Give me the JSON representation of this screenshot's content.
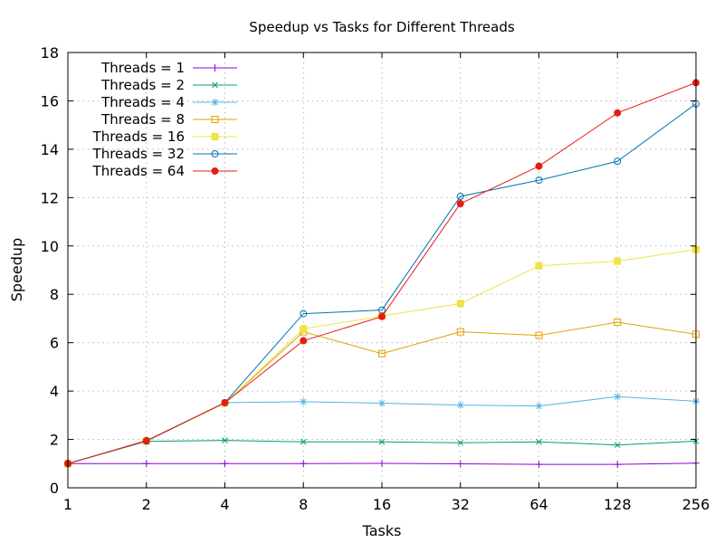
{
  "chart_data": {
    "type": "line",
    "title": "Speedup vs Tasks for Different Threads",
    "xlabel": "Tasks",
    "ylabel": "Speedup",
    "x_scale": "log2",
    "x": [
      1,
      2,
      4,
      8,
      16,
      32,
      64,
      128,
      256
    ],
    "x_tick_labels": [
      "1",
      "2",
      "4",
      "8",
      "16",
      "32",
      "64",
      "128",
      "256"
    ],
    "ylim": [
      0,
      18
    ],
    "y_ticks": [
      0,
      2,
      4,
      6,
      8,
      10,
      12,
      14,
      16,
      18
    ],
    "grid": true,
    "legend_position": "top-left",
    "series": [
      {
        "name": "Threads = 1",
        "color": "#9400d3",
        "marker": "plus",
        "values": [
          1.0,
          1.0,
          1.0,
          1.0,
          1.01,
          0.99,
          0.97,
          0.97,
          1.02
        ]
      },
      {
        "name": "Threads = 2",
        "color": "#009e73",
        "marker": "cross",
        "values": [
          1.0,
          1.92,
          1.96,
          1.9,
          1.9,
          1.86,
          1.9,
          1.77,
          1.93
        ]
      },
      {
        "name": "Threads = 4",
        "color": "#56b4e9",
        "marker": "star",
        "values": [
          1.0,
          1.93,
          3.52,
          3.56,
          3.5,
          3.42,
          3.38,
          3.77,
          3.58
        ]
      },
      {
        "name": "Threads = 8",
        "color": "#e69f00",
        "marker": "open-square",
        "values": [
          1.0,
          1.93,
          3.5,
          6.45,
          5.55,
          6.45,
          6.3,
          6.85,
          6.35
        ]
      },
      {
        "name": "Threads = 16",
        "color": "#f0e442",
        "marker": "filled-square",
        "values": [
          1.0,
          1.93,
          3.5,
          6.57,
          7.1,
          7.62,
          9.18,
          9.37,
          9.85
        ]
      },
      {
        "name": "Threads = 32",
        "color": "#0072b2",
        "marker": "open-circle",
        "values": [
          1.0,
          1.93,
          3.52,
          7.2,
          7.35,
          12.05,
          12.72,
          13.5,
          15.88
        ]
      },
      {
        "name": "Threads = 64",
        "color": "#e51e10",
        "marker": "filled-circle",
        "values": [
          1.0,
          1.95,
          3.52,
          6.08,
          7.08,
          11.75,
          13.3,
          15.5,
          16.75
        ]
      }
    ]
  }
}
